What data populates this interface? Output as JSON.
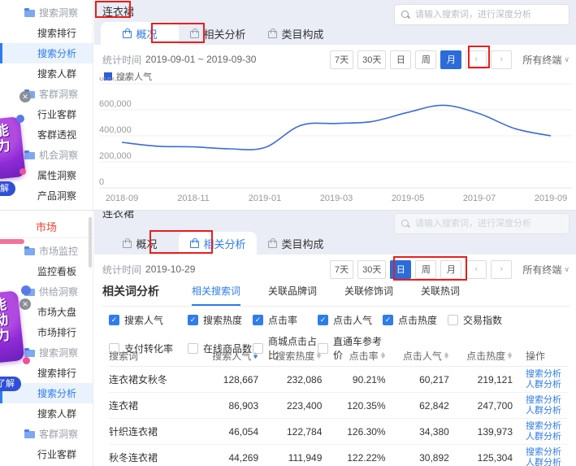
{
  "common": {
    "search_placeholder": "请输入搜索词，进行深度分析",
    "tabs": [
      {
        "label": "概况"
      },
      {
        "label": "相关分析"
      },
      {
        "label": "类目构成"
      }
    ],
    "periods": [
      "7天",
      "30天",
      "日",
      "周",
      "月"
    ],
    "prev": "‹",
    "next": "›",
    "terminal_label": "所有终端",
    "stat_label": "统计时间",
    "colors": {
      "accent_blue": "#2e7cee",
      "selected_btn": "#2b6cd9",
      "line": "#3c6bd9",
      "annotation_red": "#ec1c1c",
      "market_red": "#f04134"
    }
  },
  "sidebar_top": {
    "items": [
      {
        "type": "group",
        "label": "搜索洞察"
      },
      {
        "type": "item",
        "label": "搜索排行"
      },
      {
        "type": "item",
        "label": "搜索分析",
        "active": true
      },
      {
        "type": "item",
        "label": "搜索人群"
      },
      {
        "type": "group",
        "label": "客群洞察"
      },
      {
        "type": "item",
        "label": "行业客群"
      },
      {
        "type": "item",
        "label": "客群透视"
      },
      {
        "type": "group",
        "label": "机会洞察"
      },
      {
        "type": "item",
        "label": "属性洞察"
      },
      {
        "type": "item",
        "label": "产品洞察"
      }
    ]
  },
  "sidebar_bottom": {
    "header": "市场",
    "items": [
      {
        "type": "group",
        "label": "市场监控"
      },
      {
        "type": "item",
        "label": "监控看板"
      },
      {
        "type": "group",
        "label": "供给洞察"
      },
      {
        "type": "item",
        "label": "市场大盘"
      },
      {
        "type": "item",
        "label": "市场排行"
      },
      {
        "type": "group",
        "label": "搜索洞察"
      },
      {
        "type": "item",
        "label": "搜索排行"
      },
      {
        "type": "item",
        "label": "搜索分析",
        "active": true
      },
      {
        "type": "item",
        "label": "搜索人群"
      },
      {
        "type": "group",
        "label": "客群洞察"
      },
      {
        "type": "item",
        "label": "行业客群"
      }
    ]
  },
  "promo": {
    "badge_top_text": "能力",
    "badge_bottom_text": "能动力",
    "cta": "了解",
    "cta_short": "解"
  },
  "top_panel": {
    "keyword": "连衣裙",
    "stat_value": "2019-09-01 ~ 2019-09-30",
    "selected_period": "月",
    "legend": "搜索人气"
  },
  "chart_data": {
    "type": "line",
    "title": "",
    "xlabel": "",
    "ylabel": "搜索人气",
    "legend": [
      "搜索人气"
    ],
    "x": [
      "2018-09",
      "2018-10",
      "2018-11",
      "2018-12",
      "2019-01",
      "2019-02",
      "2019-03",
      "2019-04",
      "2019-05",
      "2019-06",
      "2019-07",
      "2019-08",
      "2019-09"
    ],
    "values": [
      350000,
      320000,
      315000,
      300000,
      310000,
      480000,
      495000,
      510000,
      580000,
      635000,
      570000,
      455000,
      400000
    ],
    "x_ticks": [
      "2018-09",
      "2018-11",
      "2019-01",
      "2019-03",
      "2019-05",
      "2019-07",
      "2019-09"
    ],
    "y_ticks": [
      "800,000",
      "600,000",
      "400,000",
      "200,000",
      "0"
    ],
    "ylim": [
      0,
      800000
    ],
    "grid": true,
    "line_color": "#3c6bd9"
  },
  "bottom_panel": {
    "keyword": "连衣裙",
    "stat_value": "2019-10-29",
    "selected_period": "日",
    "section_title": "相关词分析",
    "subtabs": [
      "相关搜索词",
      "关联品牌词",
      "关联修饰词",
      "关联热词"
    ],
    "checkbox_rows": [
      [
        {
          "label": "搜索人气",
          "checked": true
        },
        {
          "label": "搜索热度",
          "checked": true
        },
        {
          "label": "点击率",
          "checked": true
        },
        {
          "label": "点击人气",
          "checked": true
        },
        {
          "label": "点击热度",
          "checked": true
        },
        {
          "label": "交易指数",
          "checked": false
        }
      ],
      [
        {
          "label": "支付转化率",
          "checked": false
        },
        {
          "label": "在线商品数",
          "checked": false
        },
        {
          "label": "商城点击占比",
          "checked": false
        },
        {
          "label": "直通车参考价",
          "checked": false
        }
      ]
    ],
    "table": {
      "headers": [
        "搜索词",
        "搜索人气",
        "搜索热度",
        "点击率",
        "点击人气",
        "点击热度",
        "操作"
      ],
      "sorted_by": "搜索人气",
      "actions": [
        "搜索分析",
        "人群分析"
      ],
      "rows": [
        {
          "keyword": "连衣裙女秋冬",
          "values": [
            "128,667",
            "232,086",
            "90.21%",
            "60,217",
            "219,121"
          ]
        },
        {
          "keyword": "连衣裙",
          "values": [
            "86,903",
            "223,400",
            "120.35%",
            "62,842",
            "247,700"
          ]
        },
        {
          "keyword": "针织连衣裙",
          "values": [
            "46,054",
            "122,784",
            "126.30%",
            "34,380",
            "139,973"
          ]
        },
        {
          "keyword": "秋冬连衣裙",
          "values": [
            "44,269",
            "111,949",
            "122.22%",
            "30,892",
            "125,304"
          ]
        }
      ]
    }
  }
}
